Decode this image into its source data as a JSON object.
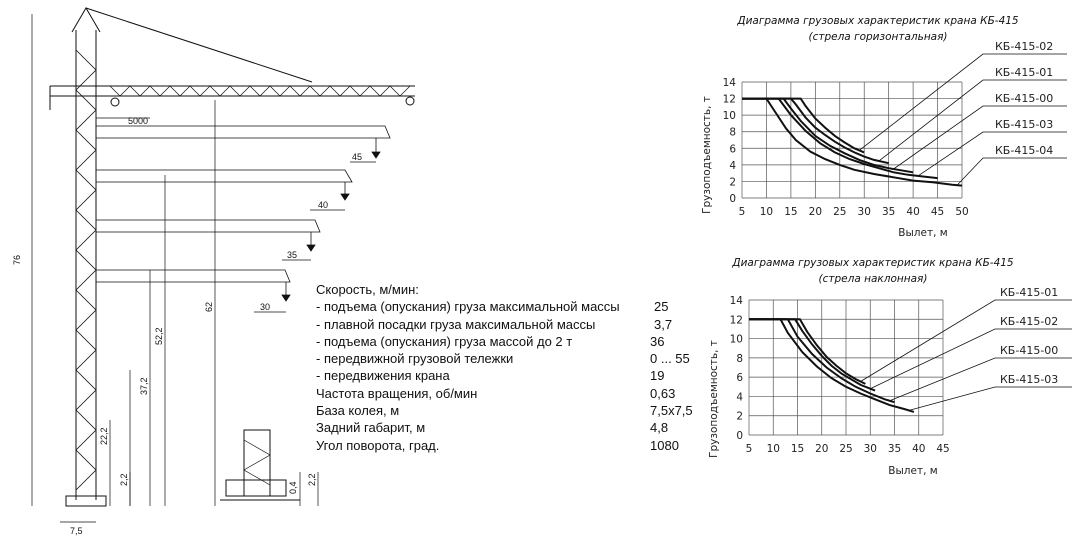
{
  "drawing": {
    "dims": {
      "height_total": "76",
      "under_hook": "62",
      "h52": "52,2",
      "h37": "37,2",
      "h22": "22,2",
      "h2": "2,2",
      "h2b": "2,2",
      "h04": "0,4",
      "track": "7,5",
      "offset": "5000",
      "r45": "45",
      "r40": "40",
      "r35": "35",
      "r30": "30"
    }
  },
  "specs": {
    "heading": "Скорость, м/мин:",
    "rows": [
      {
        "label": "- подъема (опускания) груза максимальной массы",
        "value": "25"
      },
      {
        "label": "- плавной посадки груза максимальной массы",
        "value": "3,7"
      },
      {
        "label": "- подъема (опускания) груза массой до 2 т",
        "value": "36"
      },
      {
        "label": "- передвижной грузовой тележки",
        "value": "0 ... 55"
      },
      {
        "label": "- передвижения крана",
        "value": "19"
      },
      {
        "label": "Частота вращения, об/мин",
        "value": "0,63"
      },
      {
        "label": "База колея, м",
        "value": "7,5х7,5"
      },
      {
        "label": "Задний габарит, м",
        "value": "4,8"
      },
      {
        "label": "Угол поворота, град.",
        "value": "1080"
      }
    ]
  },
  "chart_data": [
    {
      "type": "line",
      "title": "Диаграмма грузовых характеристик крана КБ-415",
      "subtitle": "(стрела горизонтальная)",
      "xlabel": "Вылет, м",
      "ylabel": "Грузоподъемность, т",
      "xlim": [
        5,
        50
      ],
      "ylim": [
        0,
        14
      ],
      "xticks": [
        5,
        10,
        15,
        20,
        25,
        30,
        35,
        40,
        45,
        50
      ],
      "yticks": [
        0,
        2,
        4,
        6,
        8,
        10,
        12,
        14
      ],
      "grid": true,
      "legend_placement": "right",
      "series": [
        {
          "name": "КБ-415-02",
          "x": [
            5,
            17,
            18,
            20,
            22,
            24,
            26,
            28,
            30
          ],
          "y": [
            12,
            12,
            11.1,
            9.6,
            8.5,
            7.5,
            6.7,
            6.0,
            5.5
          ],
          "label_at": 29
        },
        {
          "name": "КБ-415-01",
          "x": [
            5,
            15,
            16,
            18,
            20,
            22,
            24,
            26,
            28,
            30,
            32,
            35
          ],
          "y": [
            12,
            12,
            11.3,
            9.7,
            8.5,
            7.6,
            6.8,
            6.1,
            5.5,
            5.0,
            4.6,
            4.2
          ],
          "label_at": 33
        },
        {
          "name": "КБ-415-00",
          "x": [
            5,
            13.5,
            15,
            17,
            20,
            23,
            26,
            29,
            32,
            35,
            38,
            40
          ],
          "y": [
            12,
            12,
            10.8,
            9.3,
            7.5,
            6.3,
            5.4,
            4.6,
            4.0,
            3.6,
            3.3,
            3.1
          ],
          "label_at": 36
        },
        {
          "name": "КБ-415-03",
          "x": [
            5,
            12.5,
            15,
            18,
            21,
            24,
            27,
            30,
            33,
            36,
            39,
            42,
            45
          ],
          "y": [
            12,
            12,
            10.0,
            8.1,
            6.6,
            5.5,
            4.7,
            4.1,
            3.6,
            3.1,
            2.8,
            2.6,
            2.4
          ],
          "label_at": 41
        },
        {
          "name": "КБ-415-04",
          "x": [
            5,
            10,
            12,
            14,
            16,
            19,
            22,
            25,
            28,
            32,
            36,
            40,
            44,
            48,
            50
          ],
          "y": [
            12,
            12,
            10.2,
            8.4,
            7.0,
            5.6,
            4.7,
            4.0,
            3.4,
            2.9,
            2.5,
            2.1,
            1.9,
            1.6,
            1.5
          ],
          "label_at": 49
        }
      ]
    },
    {
      "type": "line",
      "title": "Диаграмма грузовых характеристик крана КБ-415",
      "subtitle": "(стрела наклонная)",
      "xlabel": "Вылет, м",
      "ylabel": "Грузоподъемность, т",
      "xlim": [
        5,
        45
      ],
      "ylim": [
        0,
        14
      ],
      "xticks": [
        5,
        10,
        15,
        20,
        25,
        30,
        35,
        40,
        45
      ],
      "yticks": [
        0,
        2,
        4,
        6,
        8,
        10,
        12,
        14
      ],
      "grid": true,
      "legend_placement": "right",
      "series": [
        {
          "name": "КБ-415-01",
          "x": [
            5,
            15.5,
            17,
            19,
            21,
            23,
            25,
            27,
            29
          ],
          "y": [
            12,
            12,
            10.7,
            9.3,
            8.1,
            7.2,
            6.4,
            5.8,
            5.3
          ],
          "label_at": 28
        },
        {
          "name": "КБ-415-02",
          "x": [
            5,
            14.5,
            16,
            18,
            20,
            22,
            24,
            26,
            28,
            30,
            31
          ],
          "y": [
            12,
            12,
            10.8,
            9.4,
            8.2,
            7.2,
            6.4,
            5.8,
            5.2,
            4.8,
            4.6
          ],
          "label_at": 30
        },
        {
          "name": "КБ-415-00",
          "x": [
            5,
            13,
            15,
            18,
            21,
            24,
            27,
            30,
            33,
            35
          ],
          "y": [
            12,
            12,
            10.2,
            8.4,
            7.0,
            5.9,
            5.0,
            4.3,
            3.7,
            3.4
          ],
          "label_at": 34
        },
        {
          "name": "КБ-415-03",
          "x": [
            5,
            11.5,
            13,
            16,
            19,
            22,
            25,
            28,
            31,
            34,
            37,
            39
          ],
          "y": [
            12,
            12,
            10.6,
            8.6,
            7.1,
            5.9,
            5.0,
            4.3,
            3.7,
            3.1,
            2.7,
            2.4
          ],
          "label_at": 38
        }
      ]
    }
  ]
}
